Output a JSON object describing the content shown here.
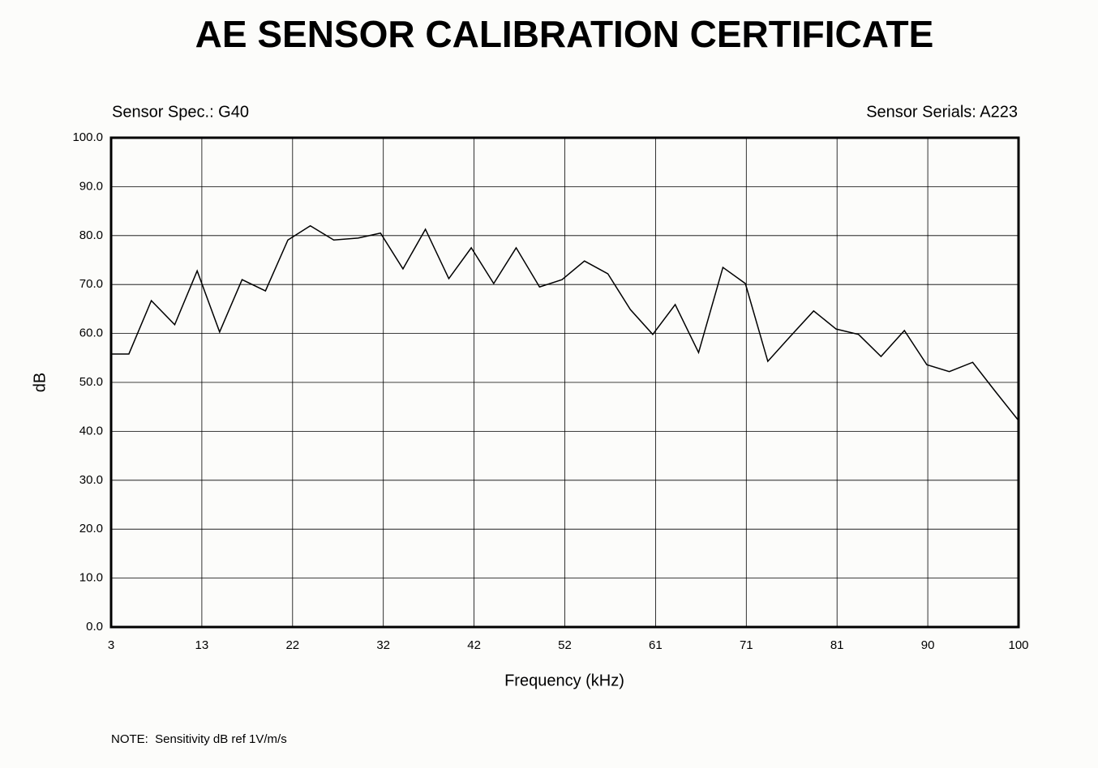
{
  "chart_data": {
    "type": "line",
    "title": "AE SENSOR CALIBRATION CERTIFICATE",
    "annotations": [
      "Sensor Spec.: G40",
      "Sensor Serials: A223",
      "NOTE:  Sensitivity dB ref 1V/m/s"
    ],
    "xlabel": "Frequency (kHz)",
    "ylabel": "dB",
    "x": [
      3,
      4.9,
      7.3,
      9.8,
      12.2,
      14.6,
      17.0,
      19.5,
      21.9,
      24.3,
      26.8,
      29.4,
      31.8,
      34.2,
      36.6,
      39.1,
      41.5,
      43.9,
      46.3,
      48.8,
      51.2,
      53.6,
      56.1,
      58.5,
      60.9,
      63.3,
      65.8,
      68.4,
      70.8,
      73.2,
      75.6,
      78.1,
      80.5,
      82.9,
      85.3,
      87.8,
      90.2,
      92.6,
      95.1,
      97.5,
      100
    ],
    "values": [
      55.8,
      55.8,
      66.7,
      61.8,
      72.8,
      60.3,
      71.0,
      68.7,
      79.1,
      82.0,
      79.1,
      79.5,
      80.5,
      73.2,
      81.3,
      71.2,
      77.5,
      70.2,
      77.5,
      69.5,
      71.0,
      74.8,
      72.2,
      64.9,
      59.8,
      65.9,
      56.1,
      73.5,
      70.2,
      54.3,
      59.4,
      64.6,
      60.9,
      59.8,
      55.3,
      60.6,
      53.6,
      52.2,
      54.1,
      48.2,
      42.2
    ],
    "color": "#000000",
    "xlim": [
      3,
      100
    ],
    "xticks": [
      3,
      {
        "value": 12.7,
        "label": "13"
      },
      {
        "value": 22.4,
        "label": "22"
      },
      {
        "value": 32.1,
        "label": "32"
      },
      {
        "value": 41.8,
        "label": "42"
      },
      {
        "value": 51.5,
        "label": "52"
      },
      {
        "value": 61.2,
        "label": "61"
      },
      {
        "value": 70.9,
        "label": "71"
      },
      {
        "value": 80.6,
        "label": "81"
      },
      {
        "value": 90.3,
        "label": "90"
      },
      100
    ],
    "ylim": [
      0,
      100
    ],
    "yticks": [
      {
        "value": 0,
        "label": "0.0"
      },
      {
        "value": 10,
        "label": "10.0"
      },
      {
        "value": 20,
        "label": "20.0"
      },
      {
        "value": 30,
        "label": "30.0"
      },
      {
        "value": 40,
        "label": "40.0"
      },
      {
        "value": 50,
        "label": "50.0"
      },
      {
        "value": 60,
        "label": "60.0"
      },
      {
        "value": 70,
        "label": "70.0"
      },
      {
        "value": 80,
        "label": "80.0"
      },
      {
        "value": 90,
        "label": "90.0"
      },
      {
        "value": 100,
        "label": "100.0"
      }
    ],
    "grid": true
  }
}
